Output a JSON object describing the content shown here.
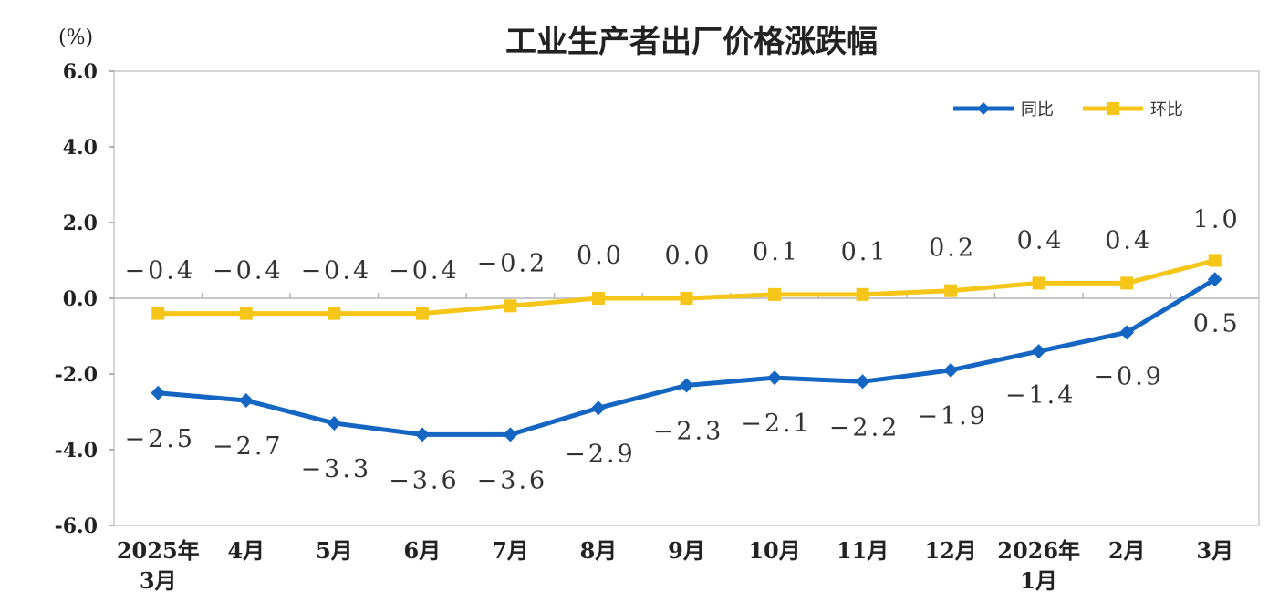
{
  "chart_data": {
    "type": "line",
    "title": "工业生产者出厂价格涨跌幅",
    "unit_label": "(%)",
    "categories": [
      [
        "2025年",
        "3月"
      ],
      [
        "4月"
      ],
      [
        "5月"
      ],
      [
        "6月"
      ],
      [
        "7月"
      ],
      [
        "8月"
      ],
      [
        "9月"
      ],
      [
        "10月"
      ],
      [
        "11月"
      ],
      [
        "12月"
      ],
      [
        "2026年",
        "1月"
      ],
      [
        "2月"
      ],
      [
        "3月"
      ]
    ],
    "y_ticks": [
      "6.0",
      "4.0",
      "2.0",
      "0.0",
      "-2.0",
      "-4.0",
      "-6.0"
    ],
    "ylim": [
      -6,
      6
    ],
    "legend_position": "top-right",
    "series": [
      {
        "name": "同比",
        "color": "#1466c2",
        "marker": "diamond",
        "values": [
          -2.5,
          -2.7,
          -3.3,
          -3.6,
          -3.6,
          -2.9,
          -2.3,
          -2.1,
          -2.2,
          -1.9,
          -1.4,
          -0.9,
          0.5
        ],
        "labels": [
          "−2.5",
          "−2.7",
          "−3.3",
          "−3.6",
          "−3.6",
          "−2.9",
          "−2.3",
          "−2.1",
          "−2.2",
          "−1.9",
          "−1.4",
          "−0.9",
          "0.5"
        ]
      },
      {
        "name": "环比",
        "color": "#f5c518",
        "marker": "square",
        "values": [
          -0.4,
          -0.4,
          -0.4,
          -0.4,
          -0.2,
          0.0,
          0.0,
          0.1,
          0.1,
          0.2,
          0.4,
          0.4,
          1.0
        ],
        "labels": [
          "−0.4",
          "−0.4",
          "−0.4",
          "−0.4",
          "−0.2",
          "0.0",
          "0.0",
          "0.1",
          "0.1",
          "0.2",
          "0.4",
          "0.4",
          "1.0"
        ]
      }
    ]
  }
}
